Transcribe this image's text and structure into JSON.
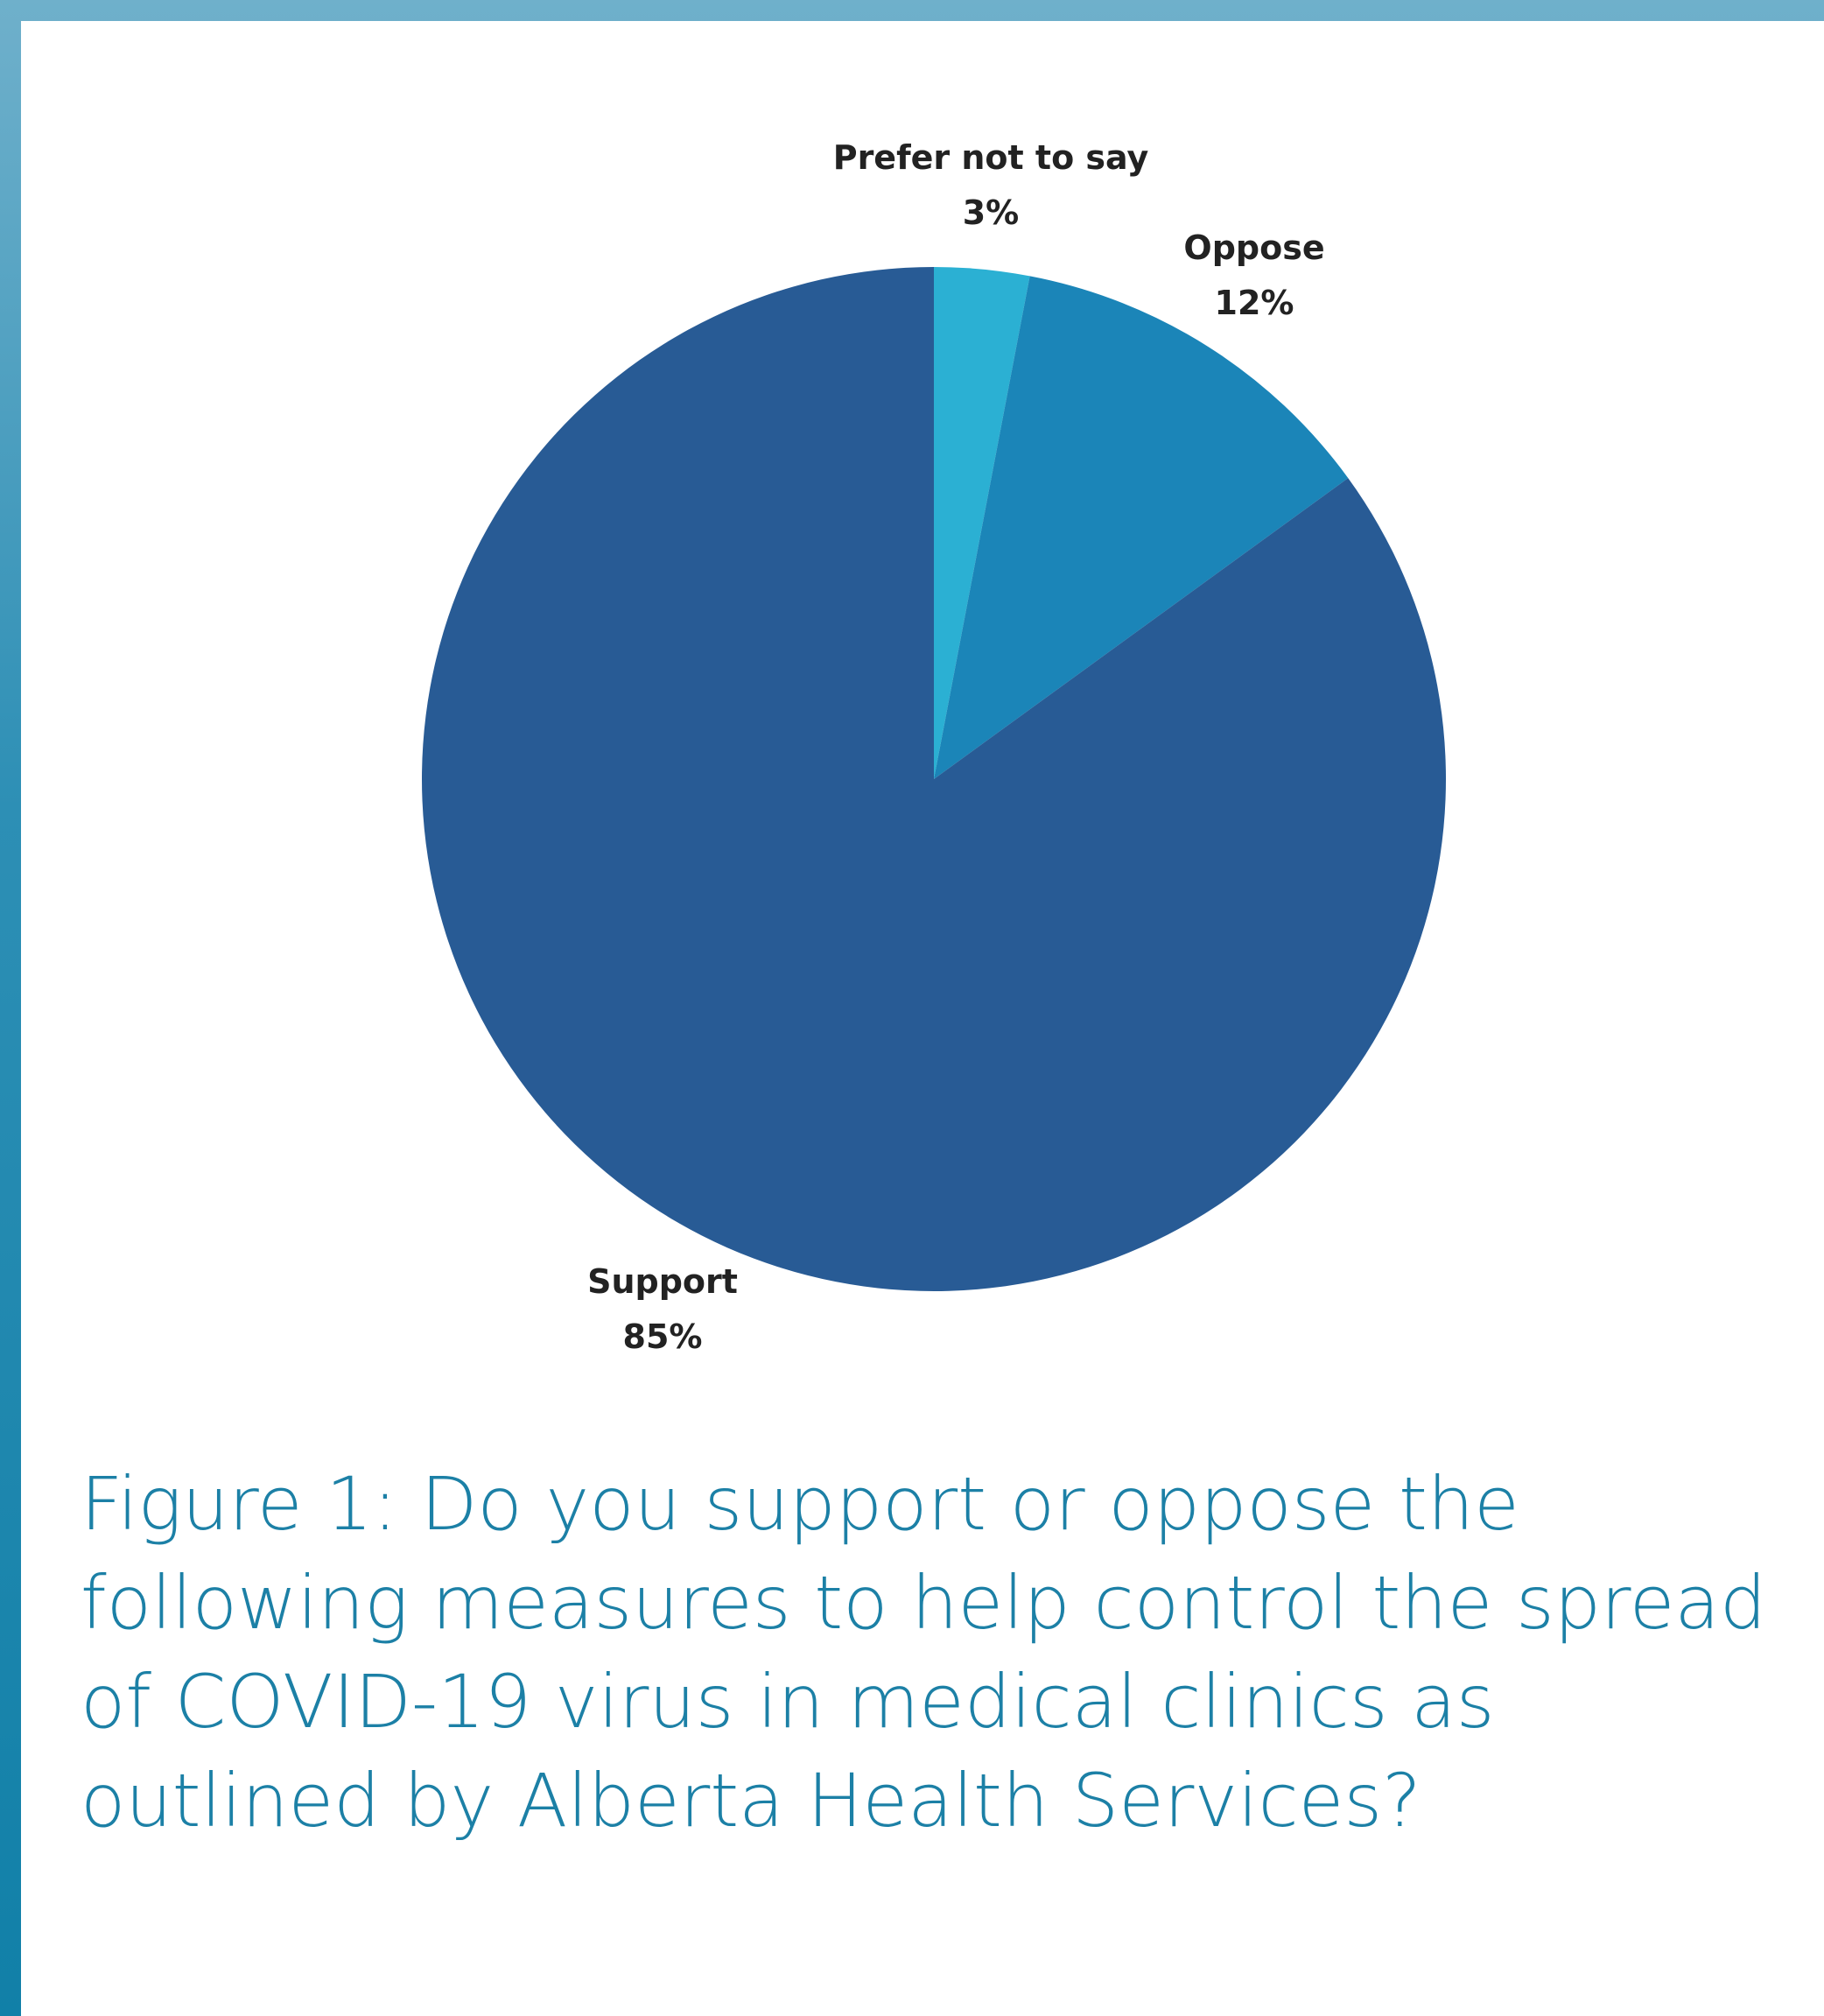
{
  "chart_data": {
    "type": "pie",
    "categories": [
      "Prefer not to say",
      "Oppose",
      "Support"
    ],
    "values": [
      3,
      12,
      85
    ],
    "value_labels": [
      "3%",
      "12%",
      "85%"
    ],
    "colors": [
      "#2bb0d3",
      "#1b85b8",
      "#285b95"
    ],
    "start_angle": "12 o'clock",
    "direction": "clockwise",
    "label_placement": "outside",
    "title": ""
  },
  "caption": {
    "prefix": "Figure 1:",
    "text": " Do you support or oppose the following measures to help control the spread of COVID-19 virus in medical clinics as outlined by Alberta Health Services?"
  }
}
